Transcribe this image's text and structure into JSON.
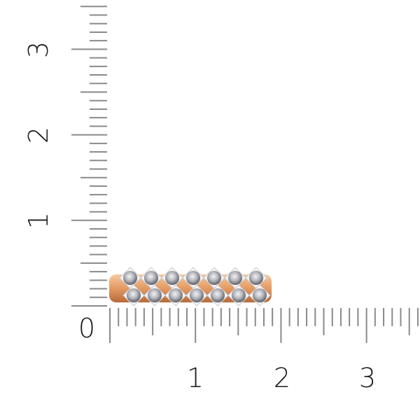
{
  "ruler": {
    "zero_label": "0",
    "vertical_labels": [
      "1",
      "2",
      "3"
    ],
    "horizontal_labels": [
      "1",
      "2",
      "3"
    ],
    "subdivisions_per_unit": 10,
    "tick_color": "#8a8a8a"
  },
  "product": {
    "metal_color": "#e8a070",
    "stone_color": "#cfd0d4",
    "stones_per_row": 7,
    "rows": 2
  }
}
